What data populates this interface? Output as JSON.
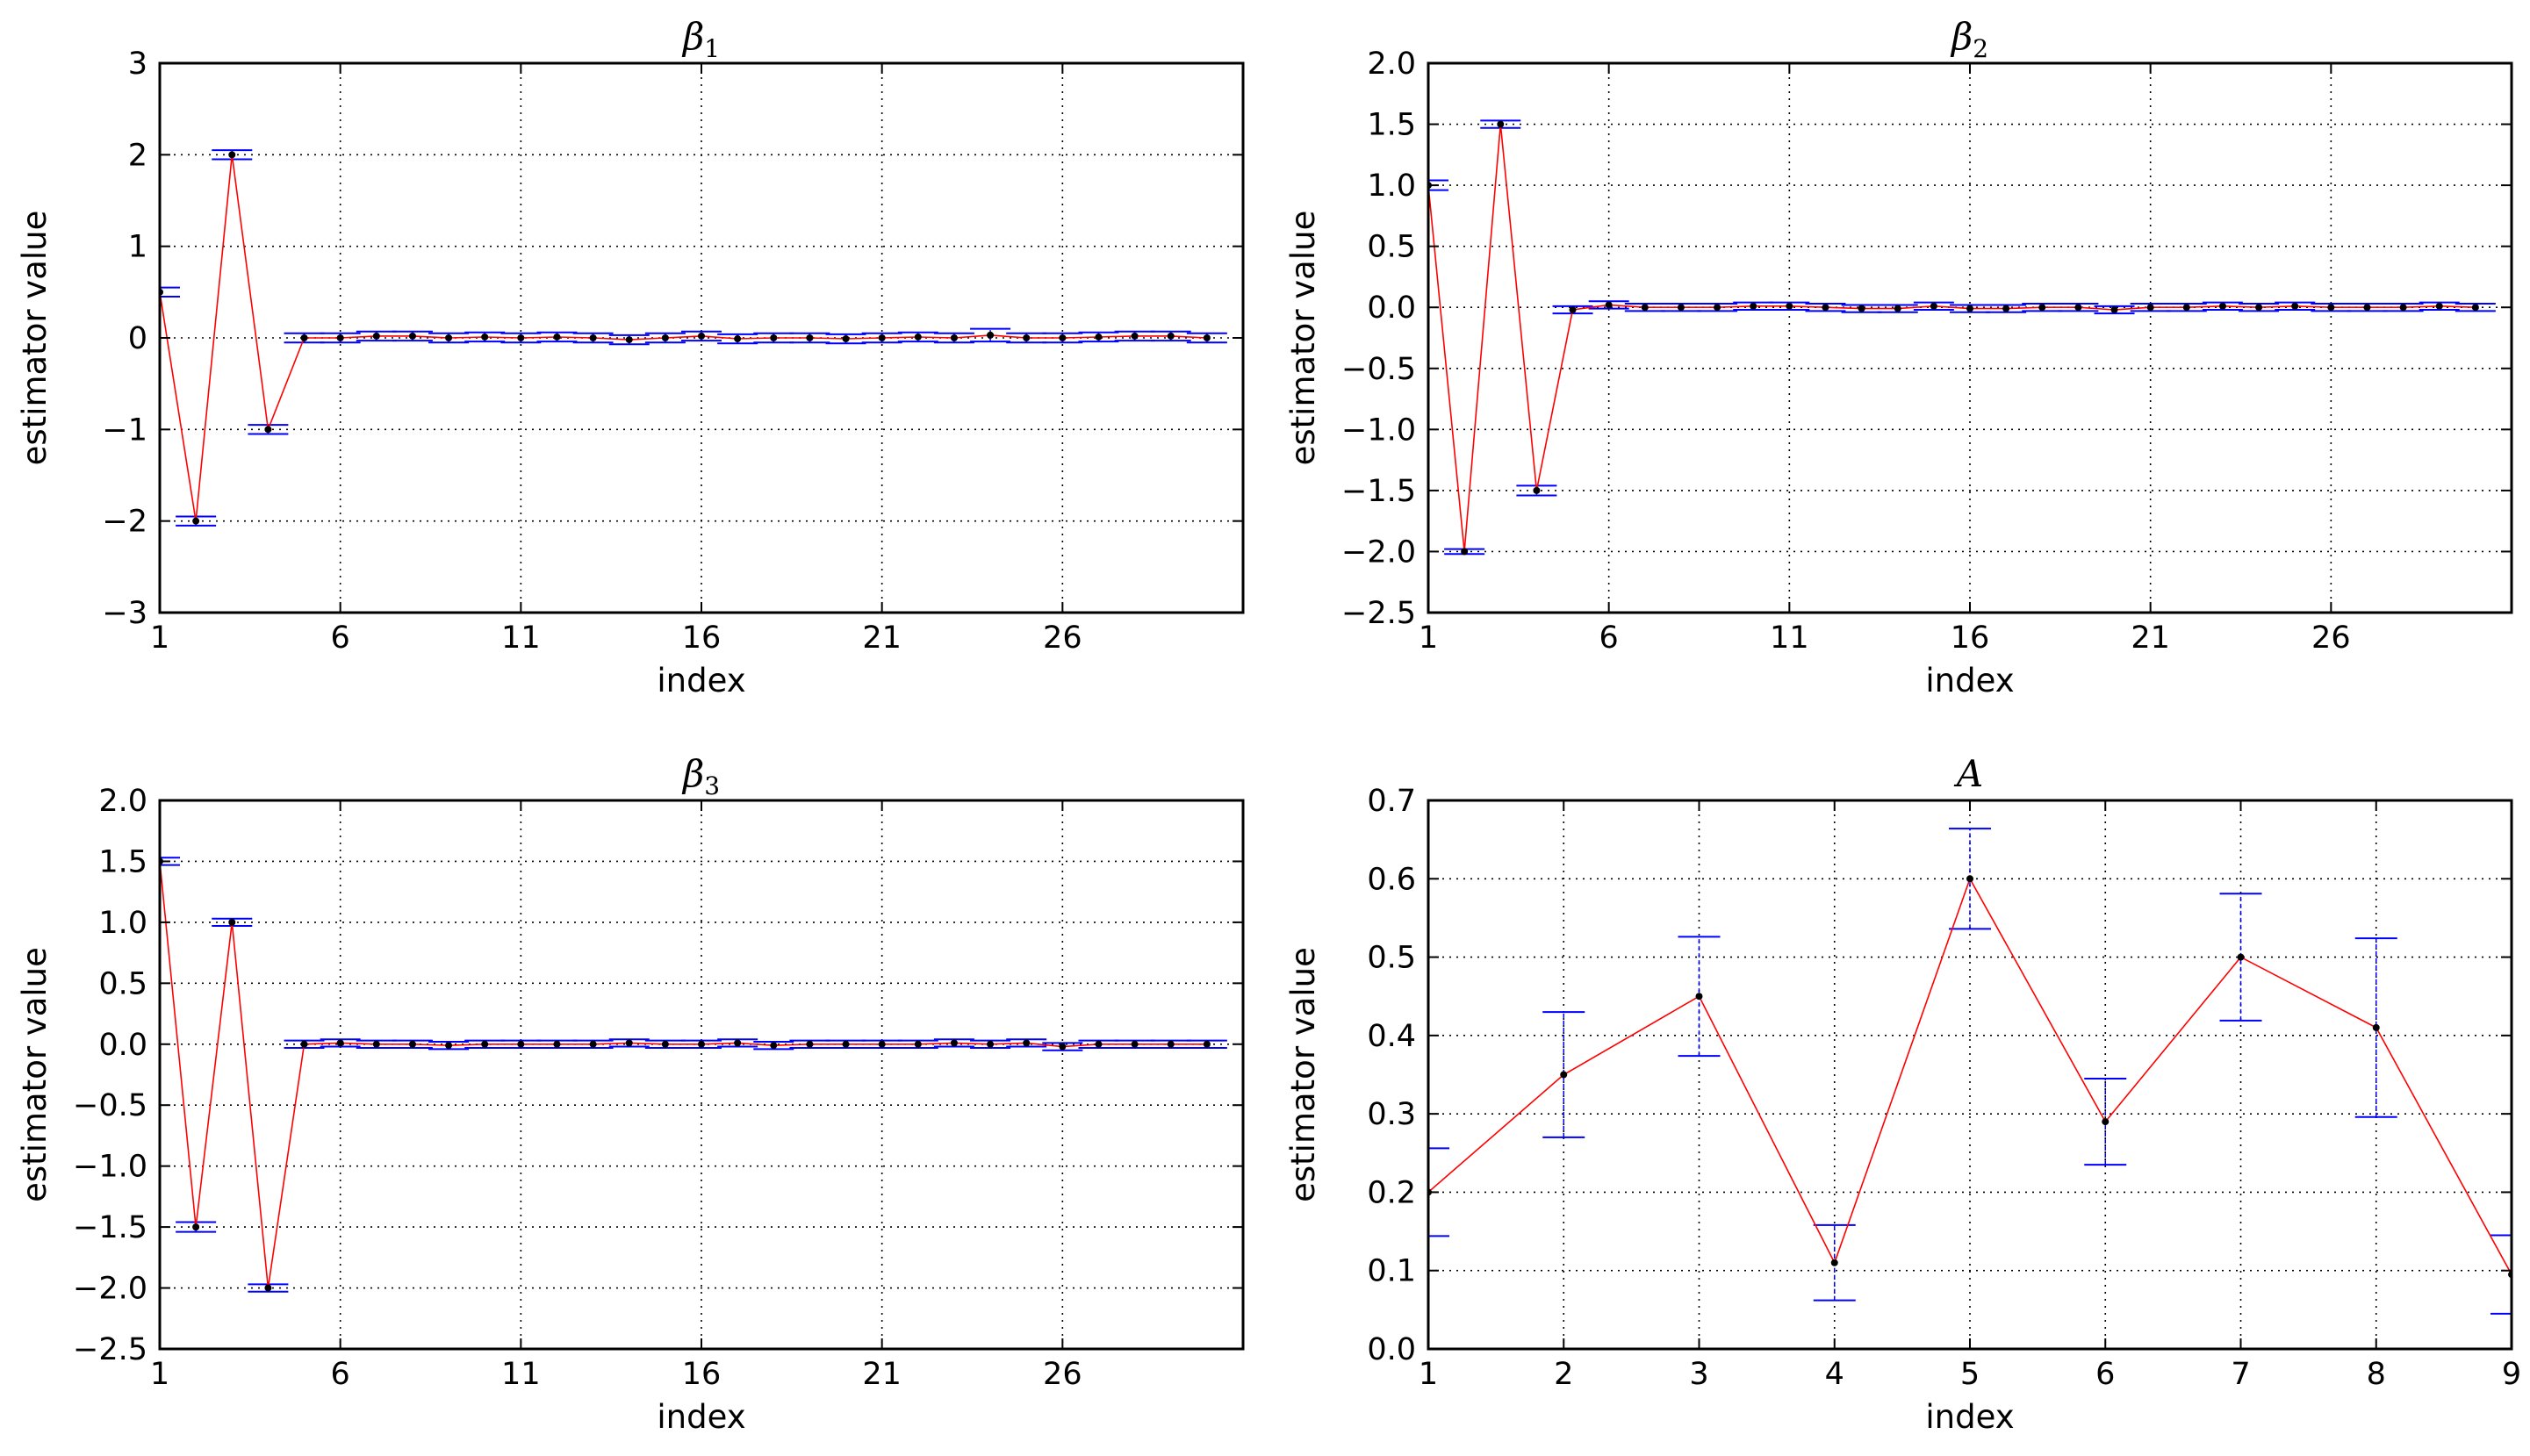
{
  "chart_data": [
    {
      "type": "line",
      "title_base": "β",
      "title_sub": "1",
      "xlabel": "index",
      "ylabel": "estimator value",
      "xlim": [
        1,
        31
      ],
      "ylim": [
        -3,
        3
      ],
      "xticks": [
        1,
        6,
        11,
        16,
        21,
        26
      ],
      "xtick_labels": [
        "1",
        "6",
        "11",
        "16",
        "21",
        "26"
      ],
      "yticks": [
        -3,
        -2,
        -1,
        0,
        1,
        2,
        3
      ],
      "ytick_labels": [
        "−3",
        "−2",
        "−1",
        "0",
        "1",
        "2",
        "3"
      ],
      "grid": true,
      "x": [
        1,
        2,
        3,
        4,
        5,
        6,
        7,
        8,
        9,
        10,
        11,
        12,
        13,
        14,
        15,
        16,
        17,
        18,
        19,
        20,
        21,
        22,
        23,
        24,
        25,
        26,
        27,
        28,
        29,
        30
      ],
      "values": [
        0.5,
        -2.0,
        2.0,
        -1.0,
        0.0,
        0.0,
        0.02,
        0.02,
        0.0,
        0.01,
        0.0,
        0.01,
        0.0,
        -0.02,
        0.0,
        0.02,
        -0.01,
        0.0,
        0.0,
        -0.01,
        0.0,
        0.01,
        0.0,
        0.03,
        0.0,
        0.0,
        0.01,
        0.02,
        0.02,
        0.0
      ],
      "error": [
        0.05,
        0.05,
        0.05,
        0.05,
        0.05,
        0.05,
        0.05,
        0.05,
        0.05,
        0.05,
        0.05,
        0.05,
        0.05,
        0.05,
        0.05,
        0.05,
        0.05,
        0.05,
        0.05,
        0.05,
        0.05,
        0.05,
        0.05,
        0.07,
        0.05,
        0.05,
        0.05,
        0.05,
        0.05,
        0.05
      ]
    },
    {
      "type": "line",
      "title_base": "β",
      "title_sub": "2",
      "xlabel": "index",
      "ylabel": "estimator value",
      "xlim": [
        1,
        31
      ],
      "ylim": [
        -2.5,
        2.0
      ],
      "xticks": [
        1,
        6,
        11,
        16,
        21,
        26
      ],
      "xtick_labels": [
        "1",
        "6",
        "11",
        "16",
        "21",
        "26"
      ],
      "yticks": [
        -2.5,
        -2.0,
        -1.5,
        -1.0,
        -0.5,
        0.0,
        0.5,
        1.0,
        1.5,
        2.0
      ],
      "ytick_labels": [
        "−2.5",
        "−2.0",
        "−1.5",
        "−1.0",
        "−0.5",
        "0.0",
        "0.5",
        "1.0",
        "1.5",
        "2.0"
      ],
      "grid": true,
      "x": [
        1,
        2,
        3,
        4,
        5,
        6,
        7,
        8,
        9,
        10,
        11,
        12,
        13,
        14,
        15,
        16,
        17,
        18,
        19,
        20,
        21,
        22,
        23,
        24,
        25,
        26,
        27,
        28,
        29,
        30
      ],
      "values": [
        1.0,
        -2.0,
        1.5,
        -1.5,
        -0.02,
        0.02,
        0.0,
        0.0,
        0.0,
        0.01,
        0.01,
        0.0,
        -0.01,
        -0.01,
        0.01,
        -0.01,
        -0.01,
        0.0,
        0.0,
        -0.02,
        0.0,
        0.0,
        0.01,
        0.0,
        0.01,
        0.0,
        0.0,
        0.0,
        0.01,
        0.0
      ],
      "error": [
        0.04,
        0.02,
        0.03,
        0.04,
        0.03,
        0.03,
        0.03,
        0.03,
        0.03,
        0.03,
        0.03,
        0.03,
        0.03,
        0.03,
        0.03,
        0.03,
        0.03,
        0.03,
        0.03,
        0.03,
        0.03,
        0.03,
        0.03,
        0.03,
        0.03,
        0.03,
        0.03,
        0.03,
        0.03,
        0.03
      ]
    },
    {
      "type": "line",
      "title_base": "β",
      "title_sub": "3",
      "xlabel": "index",
      "ylabel": "estimator value",
      "xlim": [
        1,
        31
      ],
      "ylim": [
        -2.5,
        2.0
      ],
      "xticks": [
        1,
        6,
        11,
        16,
        21,
        26
      ],
      "xtick_labels": [
        "1",
        "6",
        "11",
        "16",
        "21",
        "26"
      ],
      "yticks": [
        -2.5,
        -2.0,
        -1.5,
        -1.0,
        -0.5,
        0.0,
        0.5,
        1.0,
        1.5,
        2.0
      ],
      "ytick_labels": [
        "−2.5",
        "−2.0",
        "−1.5",
        "−1.0",
        "−0.5",
        "0.0",
        "0.5",
        "1.0",
        "1.5",
        "2.0"
      ],
      "grid": true,
      "x": [
        1,
        2,
        3,
        4,
        5,
        6,
        7,
        8,
        9,
        10,
        11,
        12,
        13,
        14,
        15,
        16,
        17,
        18,
        19,
        20,
        21,
        22,
        23,
        24,
        25,
        26,
        27,
        28,
        29,
        30
      ],
      "values": [
        1.5,
        -1.5,
        1.0,
        -2.0,
        0.0,
        0.01,
        0.0,
        0.0,
        -0.01,
        0.0,
        0.0,
        0.0,
        0.0,
        0.01,
        0.0,
        0.0,
        0.01,
        -0.01,
        0.0,
        0.0,
        0.0,
        0.0,
        0.01,
        0.0,
        0.01,
        -0.02,
        0.0,
        0.0,
        0.0,
        0.0
      ],
      "error": [
        0.03,
        0.04,
        0.03,
        0.03,
        0.03,
        0.03,
        0.03,
        0.03,
        0.03,
        0.03,
        0.03,
        0.03,
        0.03,
        0.03,
        0.03,
        0.03,
        0.03,
        0.03,
        0.03,
        0.03,
        0.03,
        0.03,
        0.03,
        0.03,
        0.03,
        0.03,
        0.03,
        0.03,
        0.03,
        0.03
      ]
    },
    {
      "type": "line",
      "title_base": "A",
      "title_sub": "",
      "xlabel": "index",
      "ylabel": "estimator value",
      "xlim": [
        1,
        9
      ],
      "ylim": [
        0.0,
        0.7
      ],
      "xticks": [
        1,
        2,
        3,
        4,
        5,
        6,
        7,
        8,
        9
      ],
      "xtick_labels": [
        "1",
        "2",
        "3",
        "4",
        "5",
        "6",
        "7",
        "8",
        "9"
      ],
      "yticks": [
        0.0,
        0.1,
        0.2,
        0.3,
        0.4,
        0.5,
        0.6,
        0.7
      ],
      "ytick_labels": [
        "0.0",
        "0.1",
        "0.2",
        "0.3",
        "0.4",
        "0.5",
        "0.6",
        "0.7"
      ],
      "grid": true,
      "x": [
        1,
        2,
        3,
        4,
        5,
        6,
        7,
        8,
        9
      ],
      "values": [
        0.2,
        0.35,
        0.45,
        0.11,
        0.6,
        0.29,
        0.5,
        0.41,
        0.095
      ],
      "error": [
        0.056,
        0.08,
        0.076,
        0.048,
        0.064,
        0.055,
        0.081,
        0.114,
        0.05
      ]
    }
  ],
  "colors": {
    "line": "#ff0000",
    "errorbar": "#0000ff",
    "marker": "#000000",
    "grid": "#000000",
    "frame": "#000000"
  }
}
